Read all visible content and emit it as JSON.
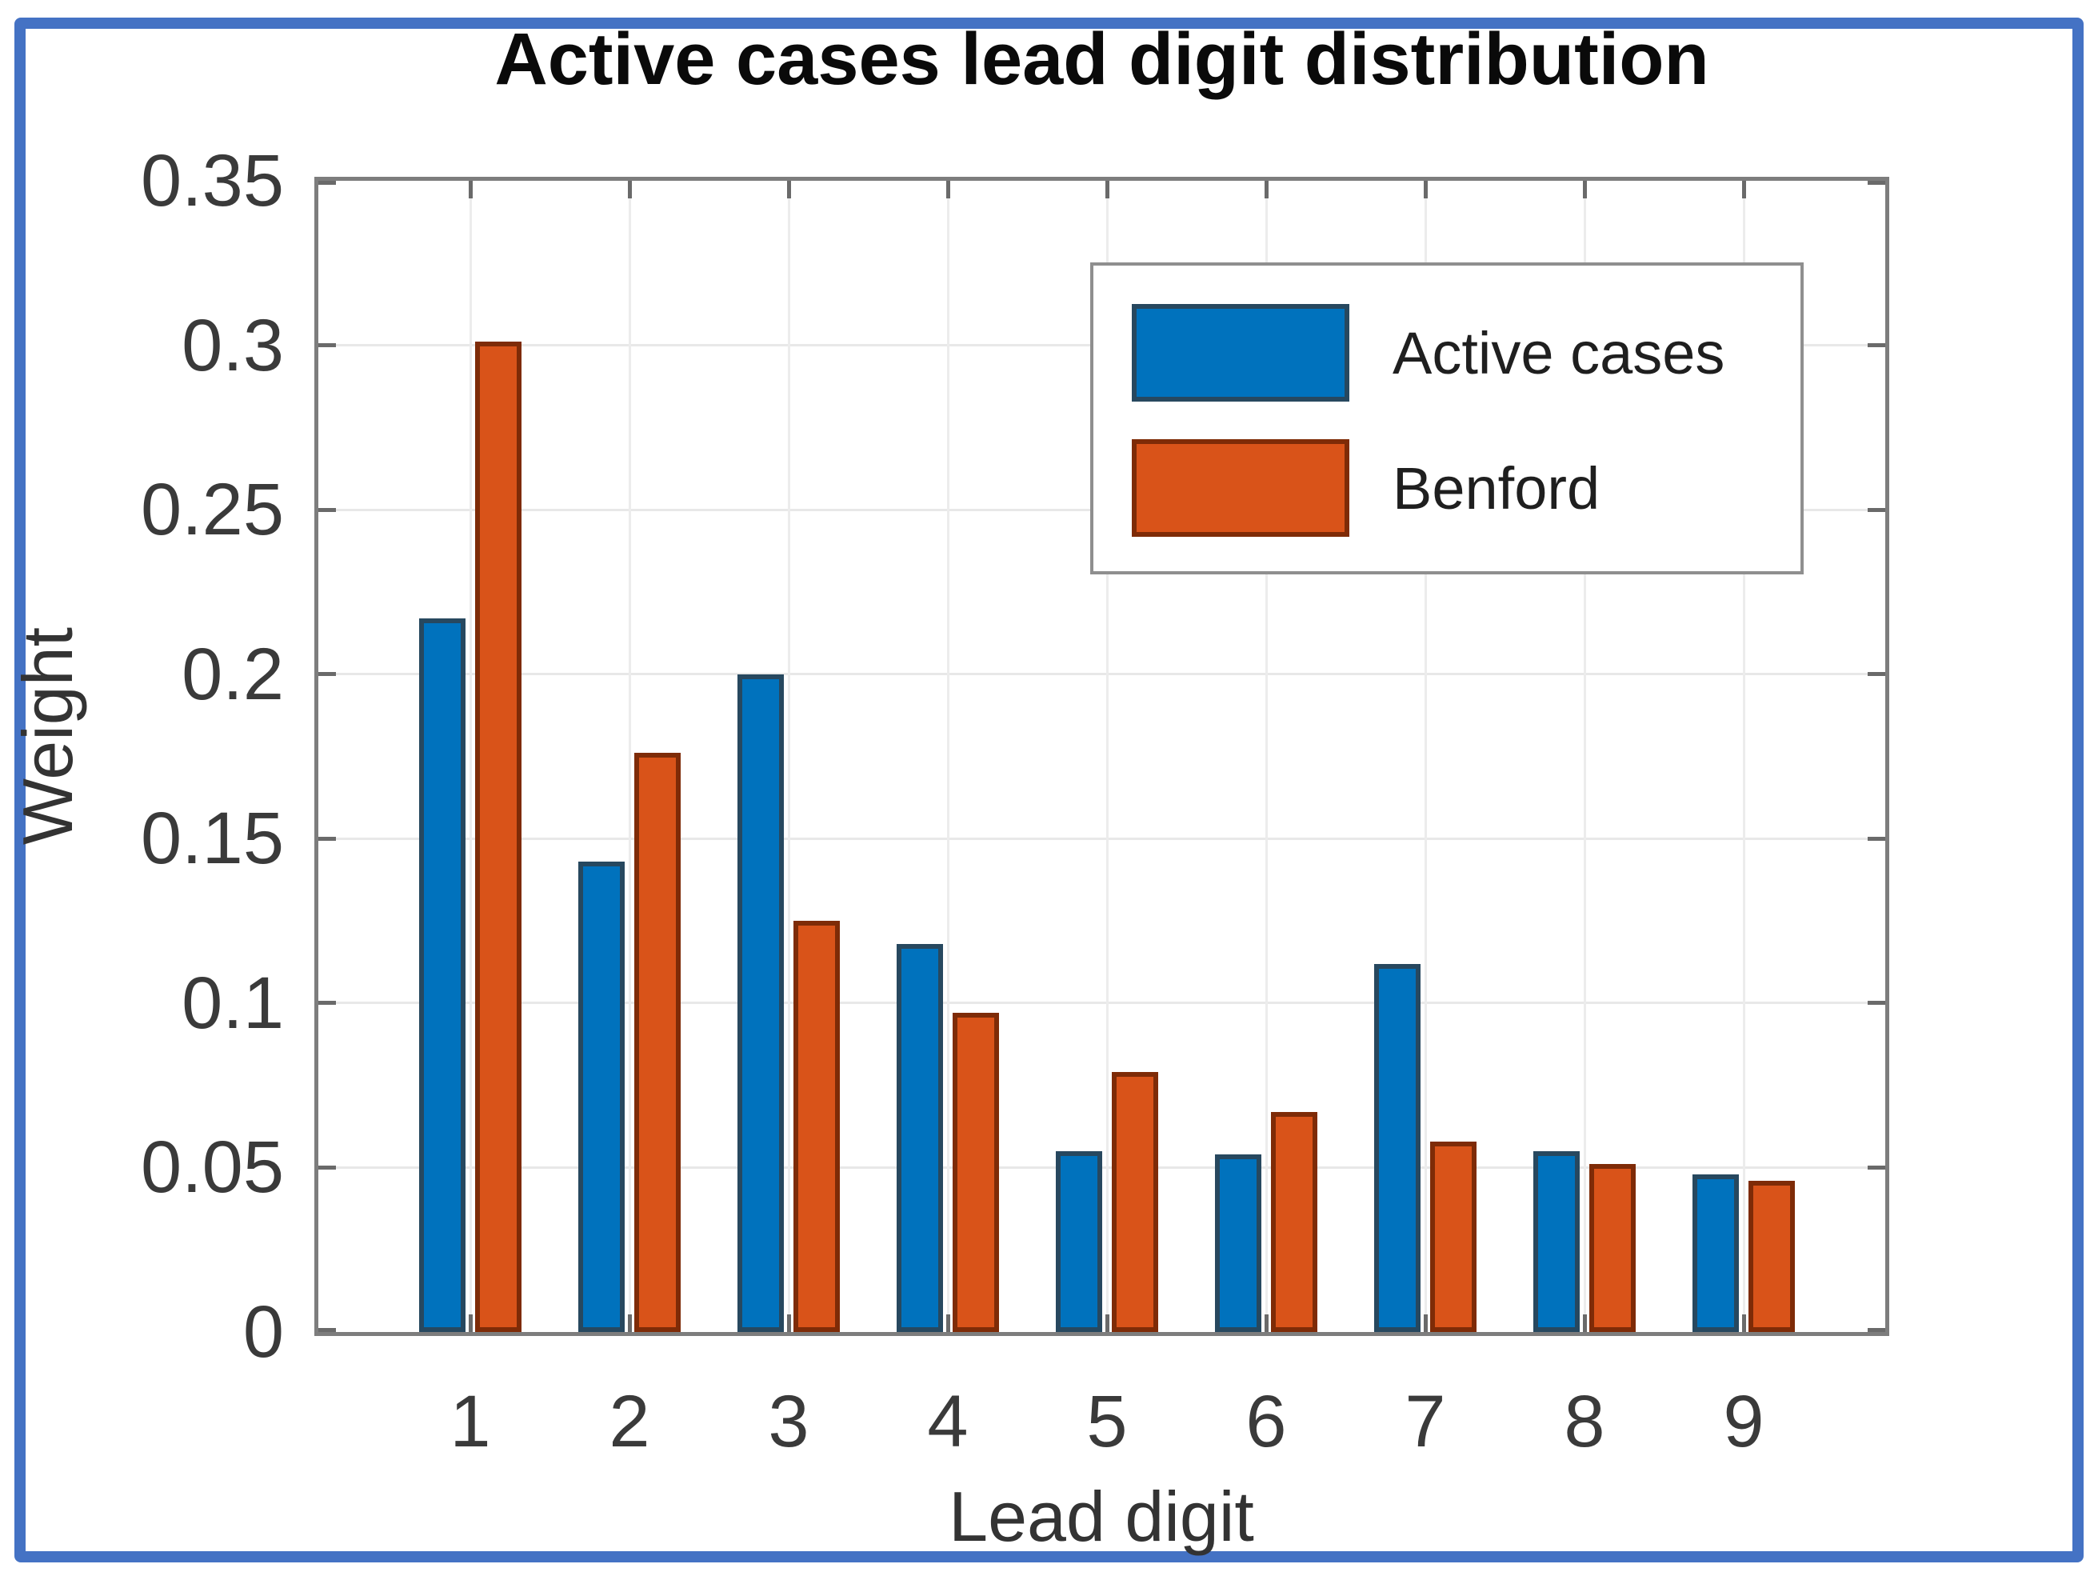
{
  "figure": {
    "border_color": "#4472C4",
    "background": "#ffffff"
  },
  "chart_data": {
    "type": "bar",
    "title": "Active cases lead digit distribution",
    "xlabel": "Lead digit",
    "ylabel": "Weight",
    "categories": [
      "1",
      "2",
      "3",
      "4",
      "5",
      "6",
      "7",
      "8",
      "9"
    ],
    "series": [
      {
        "name": "Active cases",
        "color": "#0072BD",
        "edge_color": "#27485F",
        "values": [
          0.217,
          0.143,
          0.2,
          0.118,
          0.055,
          0.054,
          0.112,
          0.055,
          0.048
        ]
      },
      {
        "name": "Benford",
        "color": "#D95319",
        "edge_color": "#7E2B07",
        "values": [
          0.301,
          0.176,
          0.125,
          0.097,
          0.079,
          0.067,
          0.058,
          0.051,
          0.046
        ]
      }
    ],
    "ylim": [
      0,
      0.35
    ],
    "ytick_values": [
      0,
      0.05,
      0.1,
      0.15,
      0.2,
      0.25,
      0.3,
      0.35
    ],
    "ytick_labels": [
      "0",
      "0.05",
      "0.1",
      "0.15",
      "0.2",
      "0.25",
      "0.3",
      "0.35"
    ],
    "grid": true,
    "legend_position": "upper right",
    "style": {
      "grid_color": "#e8e8e8",
      "spine_color": "#7d7d7d",
      "tick_color": "#6a6a6a",
      "text_color": "#3a3a3a",
      "title_color": "#0a0a0a",
      "legend_border_color": "#8f8f8f"
    }
  }
}
